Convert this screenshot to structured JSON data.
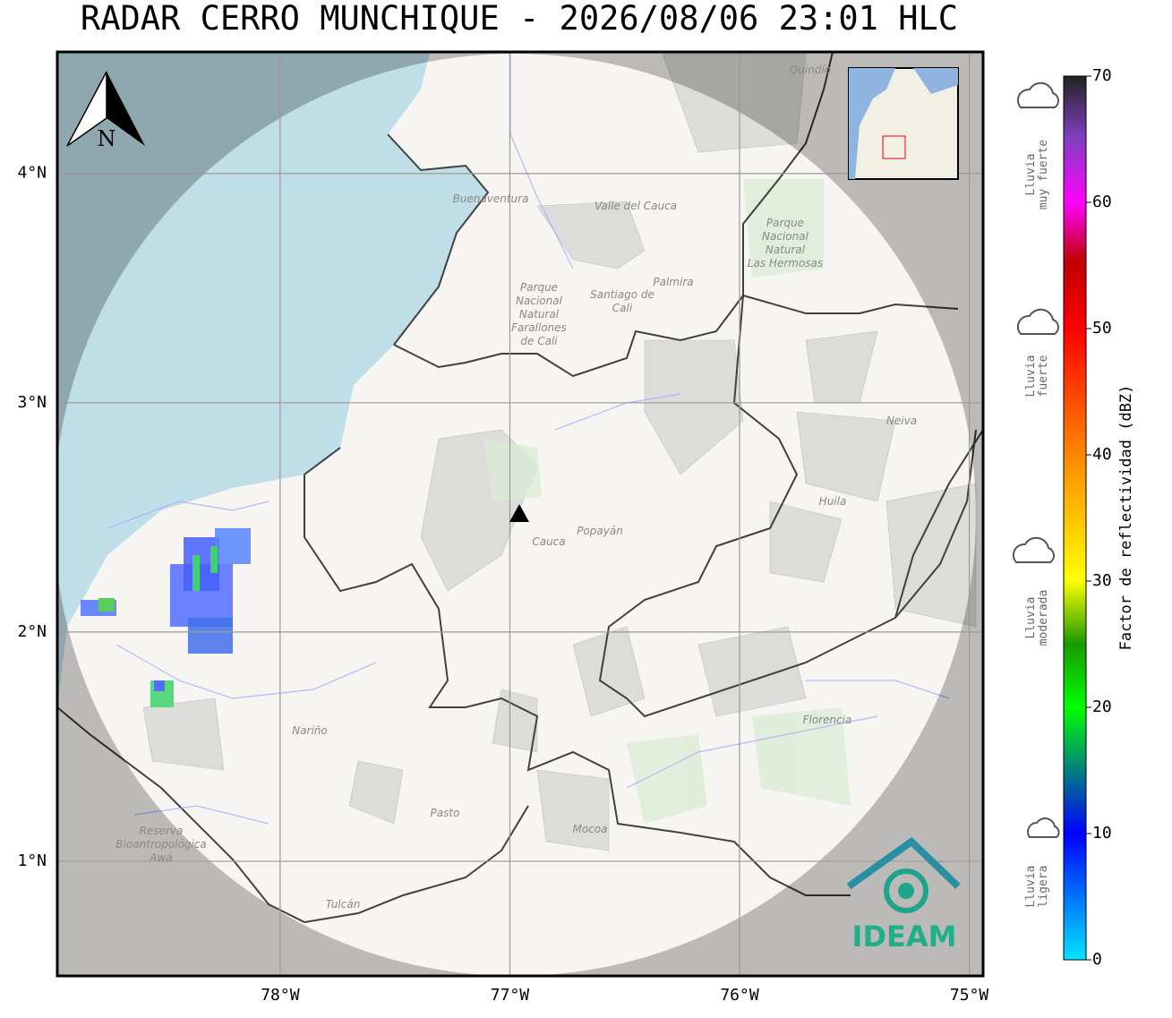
{
  "title": "RADAR CERRO MUNCHIQUE - 2026/08/06 23:01 HLC",
  "map": {
    "xlim": [
      -78.97,
      -74.94
    ],
    "ylim": [
      0.5,
      4.53
    ],
    "lon_ticks": [
      {
        "value": -78,
        "label": "78°W"
      },
      {
        "value": -77,
        "label": "77°W"
      },
      {
        "value": -76,
        "label": "76°W"
      },
      {
        "value": -75,
        "label": "75°W"
      }
    ],
    "lat_ticks": [
      {
        "value": 4,
        "label": "4°N"
      },
      {
        "value": 3,
        "label": "3°N"
      },
      {
        "value": 2,
        "label": "2°N"
      },
      {
        "value": 1,
        "label": "1°N"
      }
    ],
    "grid": true,
    "north": "N",
    "places": [
      "Quindío",
      "Buenaventura",
      "Valle del Cauca",
      [
        "Parque",
        "Nacional",
        "Natural",
        "Las Hermosas"
      ],
      "Palmira",
      [
        "Santiago de",
        "Cali"
      ],
      [
        "Parque",
        "Nacional",
        "Natural",
        "Farallones",
        "de Cali"
      ],
      "Neiva",
      "Huila",
      "Popayán",
      "Cauca",
      "Nariño",
      "Florencia",
      "Pasto",
      "Mocoa",
      [
        "Reserva",
        "Bioantropológica",
        "Awá"
      ],
      "Tulcán"
    ]
  },
  "colorbar": {
    "label": "Factor de reflectividad (dBZ)",
    "lim": [
      0,
      70
    ],
    "ticks": [
      0,
      10,
      20,
      30,
      40,
      50,
      60,
      70
    ]
  },
  "legend": [
    [
      "Lluvia",
      "muy fuerte"
    ],
    [
      "Lluvia",
      "fuerte"
    ],
    [
      "Lluvia",
      "moderada"
    ],
    [
      "Lluvia",
      "ligera"
    ]
  ],
  "logo": "IDEAM"
}
